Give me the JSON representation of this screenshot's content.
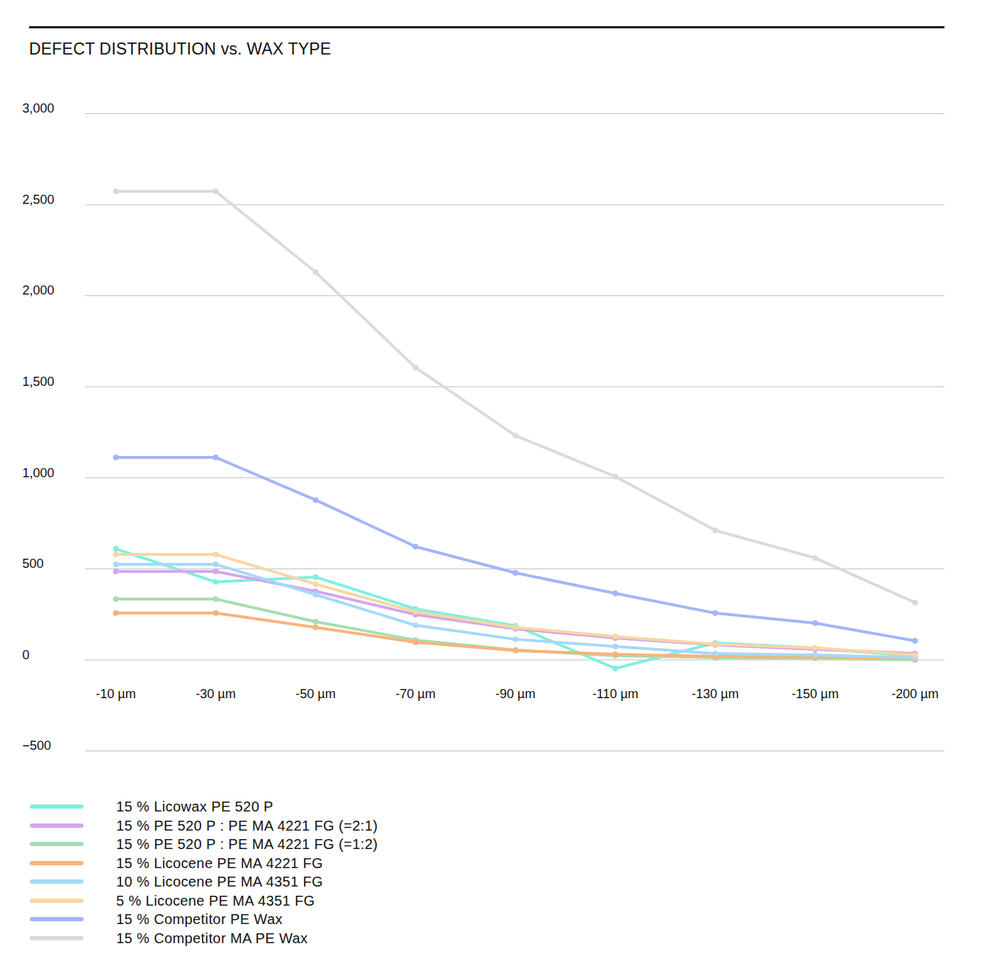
{
  "chart_data": {
    "type": "line",
    "title": "DEFECT DISTRIBUTION vs. WAX TYPE",
    "categories": [
      "-10 µm",
      "-30 µm",
      "-50 µm",
      "-70 µm",
      "-90 µm",
      "-110 µm",
      "-130 µm",
      "-150 µm",
      "-200 µm"
    ],
    "series": [
      {
        "name": "15 % Licowax PE 520 P",
        "color": "#7ef0e0",
        "values": [
          610,
          428,
          455,
          280,
          187,
          -47,
          93,
          66,
          20
        ]
      },
      {
        "name": "15 % PE 520 P : PE MA 4221 FG (=2:1)",
        "color": "#d4a6ec",
        "values": [
          486,
          486,
          377,
          249,
          171,
          120,
          82,
          58,
          35
        ]
      },
      {
        "name": "15 % PE 520 P : PE MA 4221 FG (=1:2)",
        "color": "#a9dcb2",
        "values": [
          334,
          334,
          210,
          109,
          54,
          23,
          12,
          8,
          0
        ]
      },
      {
        "name": "15 % Licocene PE MA 4221 FG",
        "color": "#f9b37a",
        "values": [
          257,
          257,
          179,
          97,
          51,
          31,
          19,
          16,
          8
        ]
      },
      {
        "name": "10 % Licocene PE MA 4351 FG",
        "color": "#a6d8f8",
        "values": [
          525,
          525,
          358,
          190,
          113,
          74,
          35,
          27,
          12
        ]
      },
      {
        "name": "5 % Licocene PE MA 4351 FG",
        "color": "#f8d6a2",
        "values": [
          579,
          579,
          416,
          264,
          179,
          128,
          86,
          66,
          27
        ]
      },
      {
        "name": "15 % Competitor PE Wax",
        "color": "#a3b5f7",
        "values": [
          1112,
          1112,
          878,
          622,
          478,
          365,
          257,
          202,
          105
        ]
      },
      {
        "name": "15 % Competitor MA PE Wax",
        "color": "#dadada",
        "values": [
          2573,
          2573,
          2130,
          1605,
          1232,
          1007,
          711,
          560,
          315
        ]
      }
    ],
    "ylim": [
      -500,
      3000
    ],
    "yticks": [
      -500,
      0,
      500,
      1000,
      1500,
      2000,
      2500,
      3000
    ],
    "grid": true,
    "marker": "circle",
    "legend": "bottom-left"
  }
}
